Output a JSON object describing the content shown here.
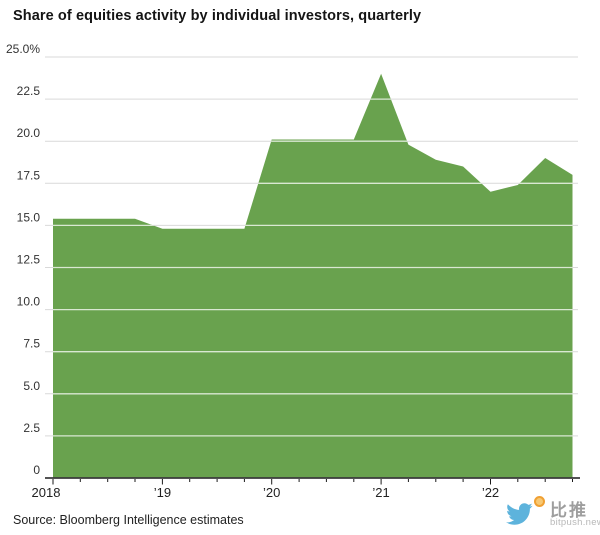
{
  "chart_data": {
    "type": "area",
    "title": "Share of equities activity by individual investors, quarterly",
    "source": "Source: Bloomberg Intelligence estimates",
    "categories": [
      "2018 Q1",
      "2018 Q2",
      "2018 Q3",
      "2018 Q4",
      "2019 Q1",
      "2019 Q2",
      "2019 Q3",
      "2019 Q4",
      "2020 Q1",
      "2020 Q2",
      "2020 Q3",
      "2020 Q4",
      "2021 Q1",
      "2021 Q2",
      "2021 Q3",
      "2021 Q4",
      "2022 Q1",
      "2022 Q2",
      "2022 Q3",
      "2022 Q4"
    ],
    "values": [
      15.4,
      15.4,
      15.4,
      15.4,
      14.8,
      14.8,
      14.8,
      14.8,
      20.1,
      20.1,
      20.1,
      20.1,
      24.0,
      19.8,
      18.9,
      18.5,
      17.0,
      17.4,
      19.0,
      18.0
    ],
    "x_axis_labels": [
      "2018",
      "’19",
      "’20",
      "’21",
      "’22"
    ],
    "y_ticks": [
      0,
      2.5,
      5,
      7.5,
      10,
      12.5,
      15,
      17.5,
      20,
      22.5,
      25
    ],
    "y_tick_labels": [
      "0",
      "2.5",
      "5.0",
      "7.5",
      "10.0",
      "12.5",
      "15.0",
      "17.5",
      "20.0",
      "22.5",
      "25.0%"
    ],
    "ylim": [
      0,
      25
    ],
    "grid": true,
    "legend": "none",
    "area_color": "#69a24e",
    "gridline_color": "#d9d9d9",
    "axis_color": "#1a1a1a",
    "tick_label_color": "#333333",
    "x_label_color": "#222222"
  },
  "watermark": {
    "brand": "比推",
    "domain": "bitpush.news",
    "bird_color": "#5db3dc",
    "coin_color": "#f0a033"
  }
}
